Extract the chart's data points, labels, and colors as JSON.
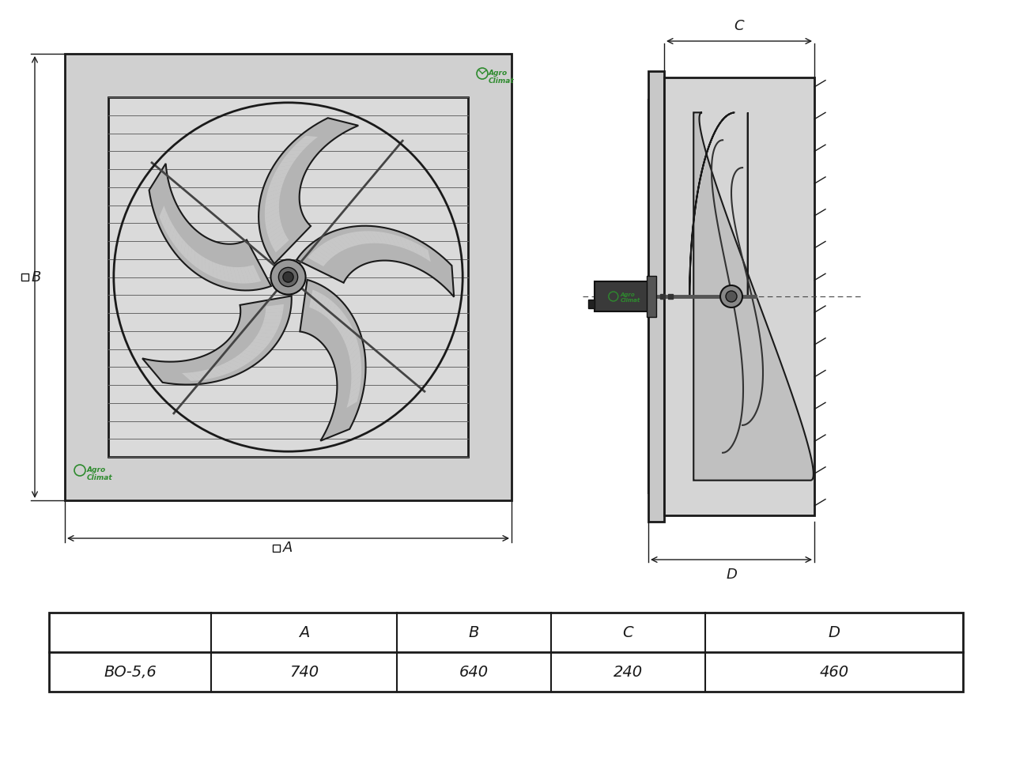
{
  "bg_color": "#ffffff",
  "panel_color": "#d0d0d0",
  "inner_color": "#d8d8d8",
  "grille_color": "#cccccc",
  "blade_color": "#b0b0b0",
  "blade_hl": "#d8d8d8",
  "blade_sh": "#888888",
  "outline_color": "#1a1a1a",
  "dim_color": "#1a1a1a",
  "green_color": "#2e8b2e",
  "model": "ВО-5,6",
  "dim_A": "740",
  "dim_B": "640",
  "dim_C": "240",
  "dim_D": "460",
  "col_A": "A",
  "col_B": "B",
  "col_C": "C",
  "col_D": "D"
}
